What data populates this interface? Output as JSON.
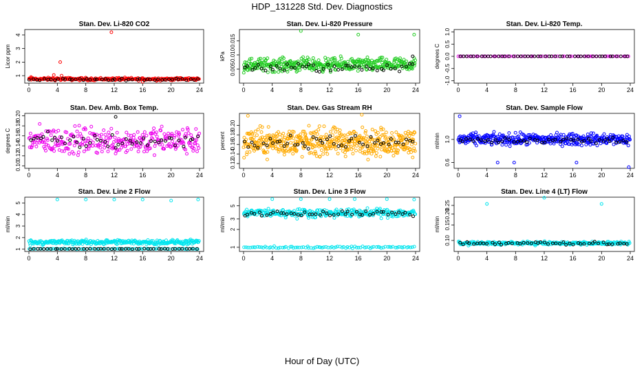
{
  "title": "HDP_131228  Std. Dev. Diagnostics",
  "x_axis_title": "Hour of Day (UTC)",
  "chart_data": [
    {
      "type": "scatter",
      "title": "Stan. Dev. Li-820 CO2",
      "ylabel": "Licor ppm",
      "xlim": [
        0,
        24
      ],
      "ylim": [
        0.45,
        4.4
      ],
      "xticks": [
        0,
        4,
        8,
        12,
        16,
        20,
        24
      ],
      "yticks": [
        1,
        2,
        3,
        4
      ],
      "series": [
        {
          "color": "#ff0000",
          "base": 0.75,
          "spread": 0.15,
          "count": 260,
          "outliers": [
            [
              0.3,
              0.9
            ],
            [
              3.5,
              1.05
            ],
            [
              4.4,
              2.0
            ],
            [
              4.6,
              1.0
            ],
            [
              11.6,
              4.2
            ],
            [
              16.0,
              0.55
            ]
          ]
        },
        {
          "color": "#000000",
          "base": 0.72,
          "spread": 0.1,
          "count": 48,
          "outliers": []
        }
      ]
    },
    {
      "type": "scatter",
      "title": "Stan. Dev. Li-820 Pressure",
      "ylabel": "kPa",
      "xlim": [
        0,
        24
      ],
      "ylim": [
        0.0,
        0.019
      ],
      "xticks": [
        0,
        4,
        8,
        12,
        16,
        20,
        24
      ],
      "yticks": [
        0.005,
        0.01,
        0.015
      ],
      "ytick_labels": [
        "0.005",
        "0.010",
        "0.015"
      ],
      "series": [
        {
          "color": "#22cc22",
          "base": 0.0065,
          "spread": 0.0035,
          "count": 420,
          "outliers": [
            [
              8.0,
              0.0185
            ],
            [
              16.0,
              0.0172
            ],
            [
              23.8,
              0.0172
            ]
          ]
        },
        {
          "color": "#000000",
          "base": 0.0055,
          "spread": 0.0025,
          "count": 48,
          "outliers": [
            [
              23.6,
              0.0095
            ]
          ]
        }
      ]
    },
    {
      "type": "scatter",
      "title": "Stan. Dev. Li-820 Temp.",
      "ylabel": "degrees C",
      "xlim": [
        0,
        24
      ],
      "ylim": [
        -1.1,
        1.1
      ],
      "xticks": [
        0,
        4,
        8,
        12,
        16,
        20,
        24
      ],
      "yticks": [
        -1.0,
        -0.5,
        0.0,
        0.5,
        1.0
      ],
      "ytick_labels": [
        "-1.0",
        "-0.5",
        "0.0",
        "0.5",
        "1.0"
      ],
      "series": [
        {
          "color": "#ee00ee",
          "base": 0.0,
          "spread": 0.0,
          "count": 70,
          "outliers": []
        },
        {
          "color": "#000000",
          "base": 0.0,
          "spread": 0.0,
          "count": 48,
          "outliers": []
        }
      ]
    },
    {
      "type": "scatter",
      "title": "Stan. Dev. Amb. Box Temp.",
      "ylabel": "degrees C",
      "xlim": [
        0,
        24
      ],
      "ylim": [
        0.095,
        0.205
      ],
      "xticks": [
        0,
        4,
        8,
        12,
        16,
        20,
        24
      ],
      "yticks": [
        0.1,
        0.12,
        0.14,
        0.16,
        0.18,
        0.2
      ],
      "ytick_labels": [
        "0.10",
        "0.12",
        "0.14",
        "0.16",
        "0.18",
        "0.20"
      ],
      "series": [
        {
          "color": "#ee00ee",
          "base": 0.15,
          "spread": 0.04,
          "count": 320,
          "outliers": []
        },
        {
          "color": "#000000",
          "base": 0.15,
          "spread": 0.025,
          "count": 48,
          "outliers": [
            [
              12.2,
              0.198
            ]
          ]
        }
      ]
    },
    {
      "type": "scatter",
      "title": "Stan. Dev. Gas Stream RH",
      "ylabel": "percent",
      "xlim": [
        0,
        24
      ],
      "ylim": [
        0.11,
        0.225
      ],
      "xticks": [
        0,
        4,
        8,
        12,
        16,
        20,
        24
      ],
      "yticks": [
        0.12,
        0.14,
        0.16,
        0.18,
        0.2
      ],
      "ytick_labels": [
        "0.12",
        "0.14",
        "0.16",
        "0.18",
        "0.20"
      ],
      "series": [
        {
          "color": "#ffaa00",
          "base": 0.165,
          "spread": 0.042,
          "count": 520,
          "outliers": [
            [
              0.6,
              0.22
            ],
            [
              16.5,
              0.222
            ]
          ]
        },
        {
          "color": "#000000",
          "base": 0.165,
          "spread": 0.02,
          "count": 48,
          "outliers": []
        }
      ]
    },
    {
      "type": "scatter",
      "title": "Stan. Dev. Sample Flow",
      "ylabel": "ml/min",
      "xlim": [
        0,
        24
      ],
      "ylim": [
        0.5,
        1.45
      ],
      "xticks": [
        0,
        4,
        8,
        12,
        16,
        20,
        24
      ],
      "yticks": [
        0.6,
        1.0
      ],
      "ytick_labels": [
        "0.6",
        "1.0"
      ],
      "series": [
        {
          "color": "#0000ff",
          "base": 1.0,
          "spread": 0.15,
          "count": 400,
          "outliers": [
            [
              0.2,
              1.4
            ],
            [
              5.5,
              0.6
            ],
            [
              7.8,
              0.6
            ],
            [
              16.5,
              0.6
            ],
            [
              23.8,
              0.52
            ]
          ]
        },
        {
          "color": "#000000",
          "base": 0.98,
          "spread": 0.08,
          "count": 48,
          "outliers": []
        }
      ]
    },
    {
      "type": "scatter",
      "title": "Stan. Dev. Line 2 Flow",
      "ylabel": "ml/min",
      "xlim": [
        0,
        24
      ],
      "ylim": [
        0.8,
        5.5
      ],
      "xticks": [
        0,
        4,
        8,
        12,
        16,
        20,
        24
      ],
      "yticks": [
        1,
        2,
        3,
        4,
        5
      ],
      "series": [
        {
          "color": "#00e5ee",
          "base": 1.6,
          "spread": 0.3,
          "count": 300,
          "outliers": [
            [
              4.0,
              5.3
            ],
            [
              8.0,
              5.3
            ],
            [
              12.0,
              5.3
            ],
            [
              16.0,
              5.3
            ],
            [
              20.0,
              5.2
            ],
            [
              23.8,
              5.3
            ]
          ]
        },
        {
          "color": "#00e5ee",
          "base": 1.02,
          "spread": 0.05,
          "count": 80,
          "outliers": []
        },
        {
          "color": "#000000",
          "base": 1.02,
          "spread": 0.03,
          "count": 48,
          "outliers": []
        }
      ]
    },
    {
      "type": "scatter",
      "title": "Stan. Dev. Line 3 Flow",
      "ylabel": "ml/min",
      "xlim": [
        0,
        24
      ],
      "ylim": [
        0.85,
        7.0
      ],
      "log_y": true,
      "xticks": [
        0,
        4,
        8,
        12,
        16,
        20,
        24
      ],
      "yticks": [
        1,
        2,
        3,
        5
      ],
      "series": [
        {
          "color": "#00e5ee",
          "base": 3.8,
          "spread": 0.9,
          "count": 300,
          "outliers": [
            [
              4.0,
              6.5
            ],
            [
              8.0,
              6.5
            ],
            [
              12.0,
              6.5
            ],
            [
              15.5,
              6.5
            ],
            [
              20.0,
              6.5
            ],
            [
              23.8,
              6.4
            ]
          ]
        },
        {
          "color": "#00e5ee",
          "base": 1.0,
          "spread": 0.05,
          "count": 90,
          "outliers": []
        },
        {
          "color": "#000000",
          "base": 3.7,
          "spread": 0.6,
          "count": 48,
          "outliers": []
        }
      ]
    },
    {
      "type": "scatter",
      "title": "Stan. Dev. Line 4 (LT) Flow",
      "ylabel": "ml/min",
      "xlim": [
        0,
        24
      ],
      "ylim": [
        0.075,
        0.31
      ],
      "log_y": true,
      "xticks": [
        0,
        4,
        8,
        12,
        16,
        20,
        24
      ],
      "yticks": [
        0.1,
        0.15,
        0.2,
        0.25
      ],
      "ytick_labels": [
        "0.10",
        "0.15",
        "0.20",
        "0.25"
      ],
      "series": [
        {
          "color": "#00e5ee",
          "base": 0.093,
          "spread": 0.006,
          "count": 260,
          "outliers": [
            [
              4.0,
              0.26
            ],
            [
              12.0,
              0.305
            ],
            [
              20.0,
              0.26
            ]
          ]
        },
        {
          "color": "#000000",
          "base": 0.093,
          "spread": 0.006,
          "count": 48,
          "outliers": []
        }
      ]
    }
  ]
}
